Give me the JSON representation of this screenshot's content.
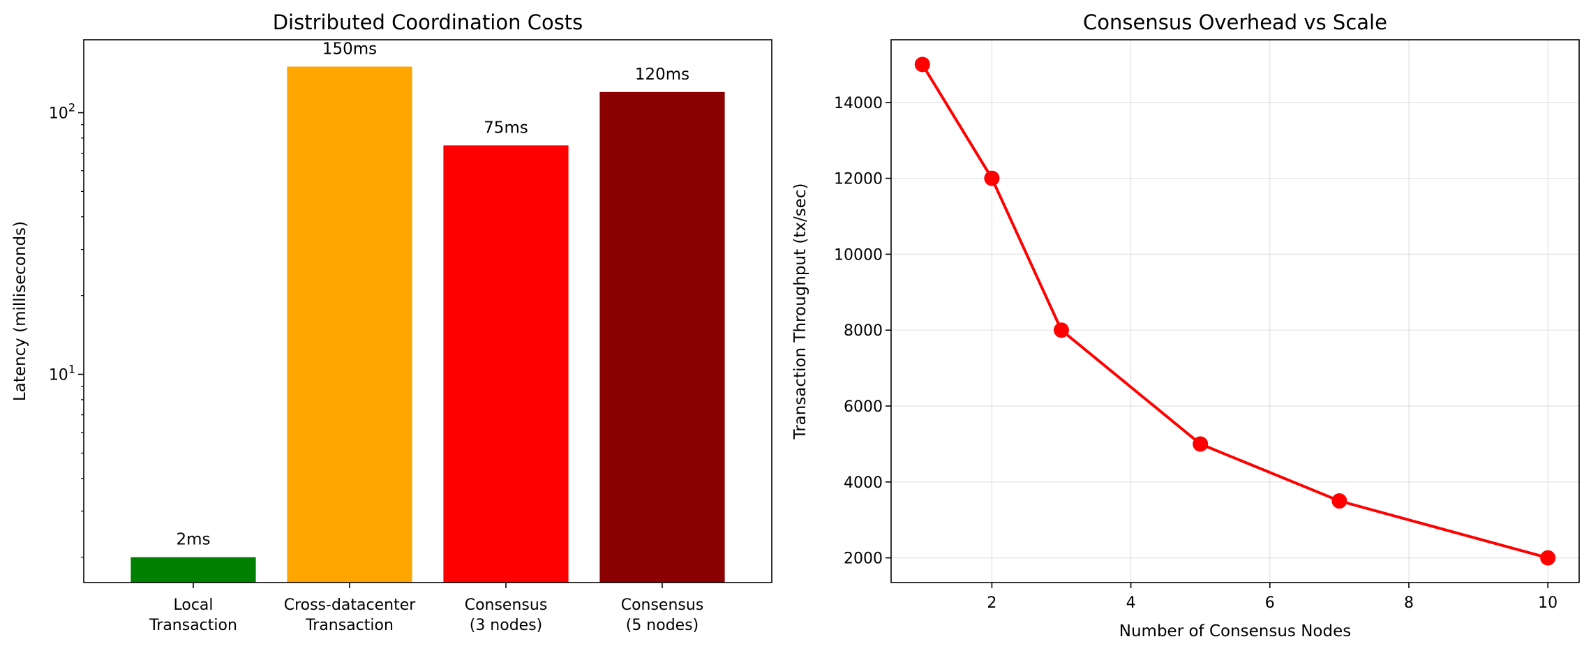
{
  "chart_data": [
    {
      "type": "bar",
      "title": "Distributed Coordination Costs",
      "xlabel": "",
      "ylabel": "Latency (milliseconds)",
      "yscale": "log",
      "ylim": [
        1.6,
        190
      ],
      "yticks": [
        {
          "value": 10,
          "base": "10",
          "exp": "1"
        },
        {
          "value": 100,
          "base": "10",
          "exp": "2"
        }
      ],
      "categories": [
        [
          "Local",
          "Transaction"
        ],
        [
          "Cross-datacenter",
          "Transaction"
        ],
        [
          "Consensus",
          "(3 nodes)"
        ],
        [
          "Consensus",
          "(5 nodes)"
        ]
      ],
      "values": [
        2,
        150,
        75,
        120
      ],
      "data_labels": [
        "2ms",
        "150ms",
        "75ms",
        "120ms"
      ],
      "colors": [
        "#008000",
        "#ffa500",
        "#ff0000",
        "#8b0000"
      ]
    },
    {
      "type": "line",
      "title": "Consensus Overhead vs Scale",
      "xlabel": "Number of Consensus Nodes",
      "ylabel": "Transaction Throughput (tx/sec)",
      "x": [
        1,
        2,
        3,
        5,
        7,
        10
      ],
      "y": [
        15000,
        12000,
        8000,
        5000,
        3500,
        2000
      ],
      "xlim": [
        0.55,
        10.45
      ],
      "ylim": [
        1350,
        15650
      ],
      "xticks": [
        2,
        4,
        6,
        8,
        10
      ],
      "yticks": [
        2000,
        4000,
        6000,
        8000,
        10000,
        12000,
        14000
      ],
      "grid": true,
      "color": "#ff0000",
      "marker": "o"
    }
  ]
}
